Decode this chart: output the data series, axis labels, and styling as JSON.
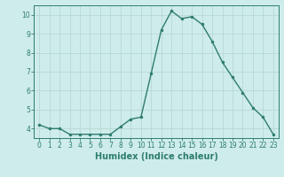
{
  "title": "",
  "xlabel": "Humidex (Indice chaleur)",
  "ylabel": "",
  "x": [
    0,
    1,
    2,
    3,
    4,
    5,
    6,
    7,
    8,
    9,
    10,
    11,
    12,
    13,
    14,
    15,
    16,
    17,
    18,
    19,
    20,
    21,
    22,
    23
  ],
  "y": [
    4.2,
    4.0,
    4.0,
    3.7,
    3.7,
    3.7,
    3.7,
    3.7,
    4.1,
    4.5,
    4.6,
    6.9,
    9.2,
    10.2,
    9.8,
    9.9,
    9.5,
    8.6,
    7.5,
    6.7,
    5.9,
    5.1,
    4.6,
    3.7
  ],
  "line_color": "#2e7d6e",
  "marker": ".",
  "marker_size": 3,
  "line_width": 1.0,
  "background_color": "#ceecea",
  "grid_color": "#b8d8d5",
  "ylim": [
    3.5,
    10.5
  ],
  "xlim": [
    -0.5,
    23.5
  ],
  "yticks": [
    4,
    5,
    6,
    7,
    8,
    9,
    10
  ],
  "xticks": [
    0,
    1,
    2,
    3,
    4,
    5,
    6,
    7,
    8,
    9,
    10,
    11,
    12,
    13,
    14,
    15,
    16,
    17,
    18,
    19,
    20,
    21,
    22,
    23
  ],
  "tick_label_fontsize": 5.5,
  "xlabel_fontsize": 7,
  "tick_color": "#2e7d6e",
  "label_color": "#2e7d6e"
}
